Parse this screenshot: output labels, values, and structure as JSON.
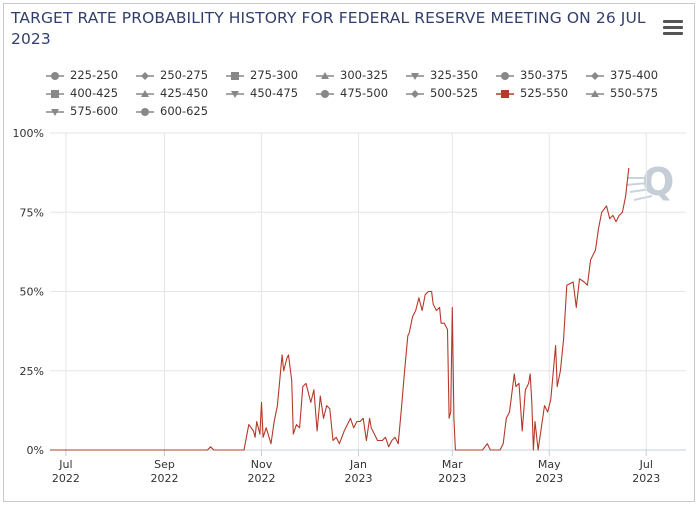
{
  "header": {
    "title": "TARGET RATE PROBABILITY HISTORY FOR FEDERAL RESERVE MEETING ON 26 JUL 2023",
    "menu_icon": "hamburger-menu-icon"
  },
  "legend": {
    "items": [
      {
        "label": "225-250",
        "marker": "circle",
        "active": false
      },
      {
        "label": "250-275",
        "marker": "diamond",
        "active": false
      },
      {
        "label": "275-300",
        "marker": "square",
        "active": false
      },
      {
        "label": "300-325",
        "marker": "triangle-up",
        "active": false
      },
      {
        "label": "325-350",
        "marker": "triangle-down",
        "active": false
      },
      {
        "label": "350-375",
        "marker": "circle",
        "active": false
      },
      {
        "label": "375-400",
        "marker": "diamond",
        "active": false
      },
      {
        "label": "400-425",
        "marker": "square",
        "active": false
      },
      {
        "label": "425-450",
        "marker": "triangle-up",
        "active": false
      },
      {
        "label": "450-475",
        "marker": "triangle-down",
        "active": false
      },
      {
        "label": "475-500",
        "marker": "circle",
        "active": false
      },
      {
        "label": "500-525",
        "marker": "diamond",
        "active": false
      },
      {
        "label": "525-550",
        "marker": "square",
        "active": true
      },
      {
        "label": "550-575",
        "marker": "triangle-up",
        "active": false
      },
      {
        "label": "575-600",
        "marker": "triangle-down",
        "active": false
      },
      {
        "label": "600-625",
        "marker": "circle",
        "active": false
      }
    ]
  },
  "colors": {
    "series": "#b5392b",
    "grid": "#e6e6e6",
    "axis": "#c0d0e0",
    "inactive_marker": "#888888",
    "title": "#333f6b",
    "watermark": "#c5ced6"
  },
  "chart_data": {
    "type": "line",
    "title": "TARGET RATE PROBABILITY HISTORY FOR FEDERAL RESERVE MEETING ON 26 JUL 2023",
    "xlabel": "",
    "ylabel": "",
    "ylim": [
      0,
      100
    ],
    "y_ticks": [
      0,
      25,
      50,
      75,
      100
    ],
    "y_tick_labels": [
      "0%",
      "25%",
      "50%",
      "75%",
      "100%"
    ],
    "x_ticks": [
      {
        "date": "2022-07-01",
        "line1": "Jul",
        "line2": "2022"
      },
      {
        "date": "2022-09-01",
        "line1": "Sep",
        "line2": "2022"
      },
      {
        "date": "2022-11-01",
        "line1": "Nov",
        "line2": "2022"
      },
      {
        "date": "2023-01-01",
        "line1": "Jan",
        "line2": "2023"
      },
      {
        "date": "2023-03-01",
        "line1": "Mar",
        "line2": "2023"
      },
      {
        "date": "2023-05-01",
        "line1": "May",
        "line2": "2023"
      },
      {
        "date": "2023-07-01",
        "line1": "Jul",
        "line2": "2023"
      }
    ],
    "xlim": [
      "2022-06-21",
      "2023-07-26"
    ],
    "grid": true,
    "legend_position": "top",
    "series": [
      {
        "name": "525-550",
        "points": [
          [
            "2022-06-21",
            0
          ],
          [
            "2022-07-15",
            0
          ],
          [
            "2022-08-15",
            0
          ],
          [
            "2022-09-15",
            0
          ],
          [
            "2022-09-28",
            0
          ],
          [
            "2022-09-30",
            1
          ],
          [
            "2022-10-02",
            0
          ],
          [
            "2022-10-10",
            0
          ],
          [
            "2022-10-21",
            0
          ],
          [
            "2022-10-24",
            8
          ],
          [
            "2022-10-27",
            6
          ],
          [
            "2022-10-28",
            4
          ],
          [
            "2022-10-29",
            9
          ],
          [
            "2022-10-31",
            5
          ],
          [
            "2022-11-01",
            15
          ],
          [
            "2022-11-02",
            4
          ],
          [
            "2022-11-04",
            7
          ],
          [
            "2022-11-07",
            2
          ],
          [
            "2022-11-09",
            9
          ],
          [
            "2022-11-11",
            14
          ],
          [
            "2022-11-14",
            30
          ],
          [
            "2022-11-15",
            25
          ],
          [
            "2022-11-17",
            29
          ],
          [
            "2022-11-18",
            30
          ],
          [
            "2022-11-20",
            22
          ],
          [
            "2022-11-21",
            5
          ],
          [
            "2022-11-23",
            8
          ],
          [
            "2022-11-25",
            7
          ],
          [
            "2022-11-27",
            20
          ],
          [
            "2022-11-29",
            21
          ],
          [
            "2022-12-01",
            17
          ],
          [
            "2022-12-02",
            15
          ],
          [
            "2022-12-04",
            19
          ],
          [
            "2022-12-06",
            6
          ],
          [
            "2022-12-08",
            17
          ],
          [
            "2022-12-10",
            10
          ],
          [
            "2022-12-12",
            14
          ],
          [
            "2022-12-14",
            13
          ],
          [
            "2022-12-16",
            3
          ],
          [
            "2022-12-18",
            4
          ],
          [
            "2022-12-20",
            2
          ],
          [
            "2022-12-23",
            6
          ],
          [
            "2022-12-27",
            10
          ],
          [
            "2022-12-29",
            7
          ],
          [
            "2022-12-31",
            9
          ],
          [
            "2023-01-02",
            9
          ],
          [
            "2023-01-04",
            10
          ],
          [
            "2023-01-06",
            3
          ],
          [
            "2023-01-08",
            10
          ],
          [
            "2023-01-09",
            7
          ],
          [
            "2023-01-11",
            5
          ],
          [
            "2023-01-13",
            3
          ],
          [
            "2023-01-16",
            3
          ],
          [
            "2023-01-18",
            4
          ],
          [
            "2023-01-20",
            1
          ],
          [
            "2023-01-22",
            3
          ],
          [
            "2023-01-24",
            4
          ],
          [
            "2023-01-26",
            2
          ],
          [
            "2023-01-28",
            13
          ],
          [
            "2023-01-30",
            25
          ],
          [
            "2023-02-01",
            36
          ],
          [
            "2023-02-02",
            37
          ],
          [
            "2023-02-04",
            42
          ],
          [
            "2023-02-06",
            44
          ],
          [
            "2023-02-08",
            48
          ],
          [
            "2023-02-10",
            44
          ],
          [
            "2023-02-12",
            49
          ],
          [
            "2023-02-14",
            50
          ],
          [
            "2023-02-16",
            50
          ],
          [
            "2023-02-17",
            46
          ],
          [
            "2023-02-19",
            44
          ],
          [
            "2023-02-21",
            45
          ],
          [
            "2023-02-22",
            40
          ],
          [
            "2023-02-24",
            40
          ],
          [
            "2023-02-26",
            38
          ],
          [
            "2023-02-27",
            10
          ],
          [
            "2023-02-28",
            12
          ],
          [
            "2023-03-01",
            45
          ],
          [
            "2023-03-02",
            10
          ],
          [
            "2023-03-03",
            0
          ],
          [
            "2023-03-10",
            0
          ],
          [
            "2023-03-20",
            0
          ],
          [
            "2023-03-23",
            2
          ],
          [
            "2023-03-25",
            0
          ],
          [
            "2023-03-31",
            0
          ],
          [
            "2023-04-02",
            2
          ],
          [
            "2023-04-04",
            10
          ],
          [
            "2023-04-06",
            12
          ],
          [
            "2023-04-08",
            20
          ],
          [
            "2023-04-09",
            24
          ],
          [
            "2023-04-10",
            20
          ],
          [
            "2023-04-12",
            21
          ],
          [
            "2023-04-14",
            6
          ],
          [
            "2023-04-16",
            19
          ],
          [
            "2023-04-18",
            21
          ],
          [
            "2023-04-19",
            24
          ],
          [
            "2023-04-20",
            15
          ],
          [
            "2023-04-21",
            0
          ],
          [
            "2023-04-22",
            9
          ],
          [
            "2023-04-24",
            0
          ],
          [
            "2023-04-26",
            7
          ],
          [
            "2023-04-28",
            14
          ],
          [
            "2023-04-30",
            12
          ],
          [
            "2023-05-02",
            16
          ],
          [
            "2023-05-05",
            33
          ],
          [
            "2023-05-06",
            20
          ],
          [
            "2023-05-08",
            25
          ],
          [
            "2023-05-10",
            35
          ],
          [
            "2023-05-12",
            52
          ],
          [
            "2023-05-16",
            53
          ],
          [
            "2023-05-18",
            45
          ],
          [
            "2023-05-20",
            54
          ],
          [
            "2023-05-23",
            53
          ],
          [
            "2023-05-25",
            52
          ],
          [
            "2023-05-27",
            60
          ],
          [
            "2023-05-30",
            63
          ],
          [
            "2023-06-01",
            70
          ],
          [
            "2023-06-03",
            75
          ],
          [
            "2023-06-06",
            77
          ],
          [
            "2023-06-08",
            73
          ],
          [
            "2023-06-10",
            74
          ],
          [
            "2023-06-12",
            72
          ],
          [
            "2023-06-14",
            74
          ],
          [
            "2023-06-16",
            75
          ],
          [
            "2023-06-18",
            80
          ],
          [
            "2023-06-20",
            89
          ]
        ]
      }
    ]
  }
}
